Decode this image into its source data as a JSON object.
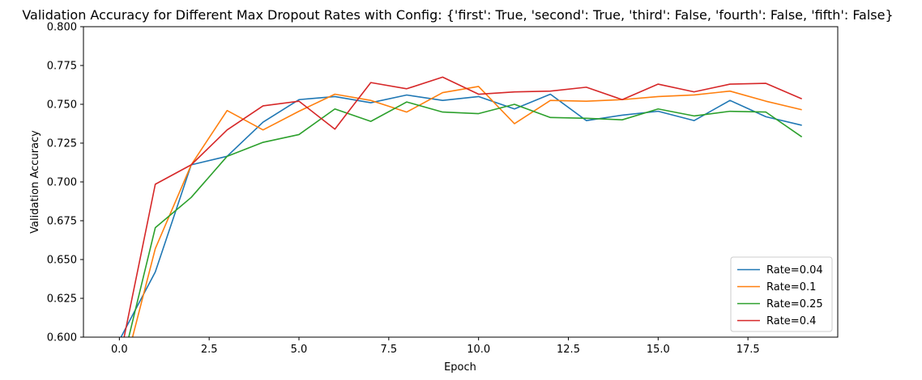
{
  "chart_data": {
    "type": "line",
    "title": "Validation Accuracy for Different Max Dropout Rates with Config: {'first': True, 'second': True, 'third': False, 'fourth': False, 'fifth': False}",
    "xlabel": "Epoch",
    "ylabel": "Validation Accuracy",
    "xlim": [
      -1.0,
      20.0
    ],
    "ylim": [
      0.6,
      0.8
    ],
    "xticks": [
      0.0,
      2.5,
      5.0,
      7.5,
      10.0,
      12.5,
      15.0,
      17.5
    ],
    "xtick_labels": [
      "0.0",
      "2.5",
      "5.0",
      "7.5",
      "10.0",
      "12.5",
      "15.0",
      "17.5"
    ],
    "yticks": [
      0.6,
      0.625,
      0.65,
      0.675,
      0.7,
      0.725,
      0.75,
      0.775,
      0.8
    ],
    "ytick_labels": [
      "0.600",
      "0.625",
      "0.650",
      "0.675",
      "0.700",
      "0.725",
      "0.750",
      "0.775",
      "0.800"
    ],
    "grid": false,
    "legend_position": "bottom-right",
    "x": [
      0,
      1,
      2,
      3,
      4,
      5,
      6,
      7,
      8,
      9,
      10,
      11,
      12,
      13,
      14,
      15,
      16,
      17,
      18,
      19
    ],
    "series": [
      {
        "name": "Rate=0.04",
        "color": "#1f77b4",
        "values": [
          0.598,
          0.642,
          0.711,
          0.7165,
          0.7385,
          0.753,
          0.755,
          0.751,
          0.756,
          0.7525,
          0.755,
          0.747,
          0.7565,
          0.7395,
          0.743,
          0.7455,
          0.7395,
          0.7525,
          0.742,
          0.7365
        ]
      },
      {
        "name": "Rate=0.1",
        "color": "#ff7f0e",
        "values": [
          0.567,
          0.657,
          0.711,
          0.746,
          0.7335,
          0.7455,
          0.7565,
          0.7525,
          0.745,
          0.7575,
          0.7615,
          0.7375,
          0.7525,
          0.752,
          0.753,
          0.755,
          0.756,
          0.7585,
          0.752,
          0.7465
        ]
      },
      {
        "name": "Rate=0.25",
        "color": "#2ca02c",
        "values": [
          0.575,
          0.6705,
          0.69,
          0.7165,
          0.7255,
          0.7305,
          0.747,
          0.739,
          0.7515,
          0.745,
          0.744,
          0.75,
          0.7415,
          0.741,
          0.74,
          0.747,
          0.7425,
          0.7455,
          0.745,
          0.729
        ]
      },
      {
        "name": "Rate=0.4",
        "color": "#d62728",
        "values": [
          0.585,
          0.6985,
          0.711,
          0.7335,
          0.749,
          0.752,
          0.734,
          0.764,
          0.76,
          0.7675,
          0.7565,
          0.758,
          0.7585,
          0.761,
          0.753,
          0.763,
          0.758,
          0.763,
          0.7635,
          0.7535
        ]
      }
    ]
  }
}
